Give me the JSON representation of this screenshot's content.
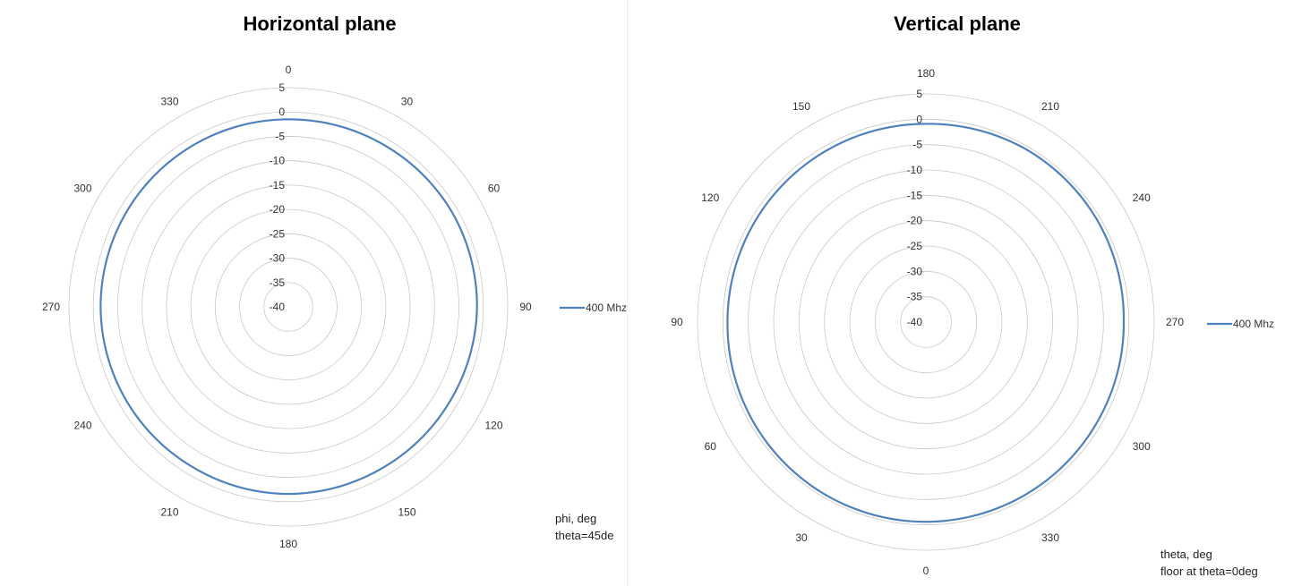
{
  "chart_data": [
    {
      "type": "polar-line",
      "title": "Horizontal plane",
      "angular_tick_labels": [
        "0",
        "30",
        "60",
        "90",
        "120",
        "150",
        "180",
        "210",
        "240",
        "270",
        "300",
        "330"
      ],
      "angular_direction": "clockwise",
      "radial_tick_labels": [
        "5",
        "0",
        "-5",
        "-10",
        "-15",
        "-20",
        "-25",
        "-30",
        "-35",
        "-40"
      ],
      "rlim": [
        -40,
        5
      ],
      "grid": true,
      "legend_position": "right",
      "series": [
        {
          "name": "400 Mhz",
          "color": "#4f81bd",
          "angles": [
            0,
            30,
            60,
            90,
            120,
            150,
            180,
            210,
            240,
            270,
            300,
            330
          ],
          "values": [
            -1.5,
            -1.4,
            -1.2,
            -1.3,
            -1.6,
            -1.7,
            -1.6,
            -1.7,
            -1.6,
            -1.5,
            -1.5,
            -1.5
          ]
        }
      ],
      "annotation": [
        "phi, deg",
        "theta=45de"
      ]
    },
    {
      "type": "polar-line",
      "title": "Vertical plane",
      "angular_tick_labels": [
        "180",
        "210",
        "240",
        "270",
        "300",
        "330",
        "0",
        "30",
        "60",
        "90",
        "120",
        "150"
      ],
      "angular_direction": "clockwise",
      "radial_tick_labels": [
        "5",
        "0",
        "-5",
        "-10",
        "-15",
        "-20",
        "-25",
        "-30",
        "-35",
        "-40"
      ],
      "rlim": [
        -40,
        5
      ],
      "grid": true,
      "legend_position": "right",
      "series": [
        {
          "name": "400 Mhz",
          "color": "#4f81bd",
          "angles": [
            180,
            210,
            240,
            270,
            300,
            330,
            0,
            30,
            60,
            90,
            120,
            150
          ],
          "values": [
            -0.9,
            -0.6,
            -0.7,
            -1.0,
            -0.9,
            -0.7,
            -0.6,
            -0.6,
            -0.7,
            -0.9,
            -0.9,
            -0.9
          ]
        }
      ],
      "annotation": [
        "theta, deg",
        "floor at theta=0deg"
      ]
    }
  ]
}
